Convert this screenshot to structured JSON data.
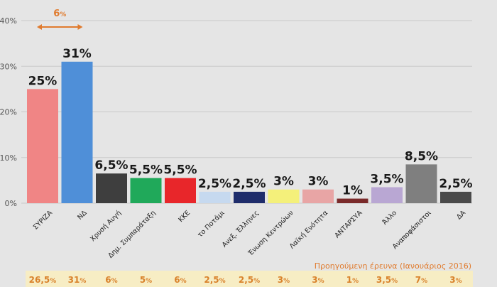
{
  "chart_data": {
    "type": "bar",
    "categories": [
      "ΣΥΡΙΖΑ",
      "ΝΔ",
      "Χρυσή Αυγή",
      "Δημ. Συμπαράταξη",
      "ΚΚΕ",
      "το Ποτάμι",
      "Ανεξ. Έλληνες",
      "Ένωση Κεντρώων",
      "Λαϊκή Ενότητα",
      "ΑΝΤΑΡΣΥΑ",
      "Άλλο",
      "Αναποφάσιστοι",
      "ΔΑ"
    ],
    "values": [
      25,
      31,
      6.5,
      5.5,
      5.5,
      2.5,
      2.5,
      3,
      3,
      1,
      3.5,
      8.5,
      2.5
    ],
    "value_labels": [
      "25%",
      "31%",
      "6,5%",
      "5,5%",
      "5,5%",
      "2,5%",
      "2,5%",
      "3%",
      "3%",
      "1%",
      "3,5%",
      "8,5%",
      "2,5%"
    ],
    "colors": [
      "#f08585",
      "#4f8fd8",
      "#3e3e3e",
      "#20a95a",
      "#e8262a",
      "#c6d9ef",
      "#1f2d6b",
      "#f4f07a",
      "#e8a5a5",
      "#7a2a2a",
      "#b9a7d3",
      "#7f7f7f",
      "#4a4a4a"
    ],
    "ylim": [
      0,
      40
    ],
    "yticks": [
      0,
      10,
      20,
      30,
      40
    ],
    "ytick_labels": [
      "0%",
      "10%",
      "20%",
      "30%",
      "40%"
    ],
    "grid": true,
    "annotation": {
      "text": "6",
      "unit": "%",
      "between": [
        "ΣΥΡΙΖΑ",
        "ΝΔ"
      ],
      "color": "#e07b2e"
    },
    "previous": {
      "title": "Προηγούμενη έρευνα (Ιανουάριος 2016)",
      "values": [
        26.5,
        31,
        6,
        5,
        6,
        2.5,
        2.5,
        3,
        3,
        1,
        3.5,
        7,
        3
      ],
      "numbers": [
        "26,5",
        "31",
        "6",
        "5",
        "6",
        "2,5",
        "2,5",
        "3",
        "3",
        "1",
        "3,5",
        "7",
        "3"
      ],
      "unit": "%",
      "band_color": "#f7edc4"
    }
  }
}
